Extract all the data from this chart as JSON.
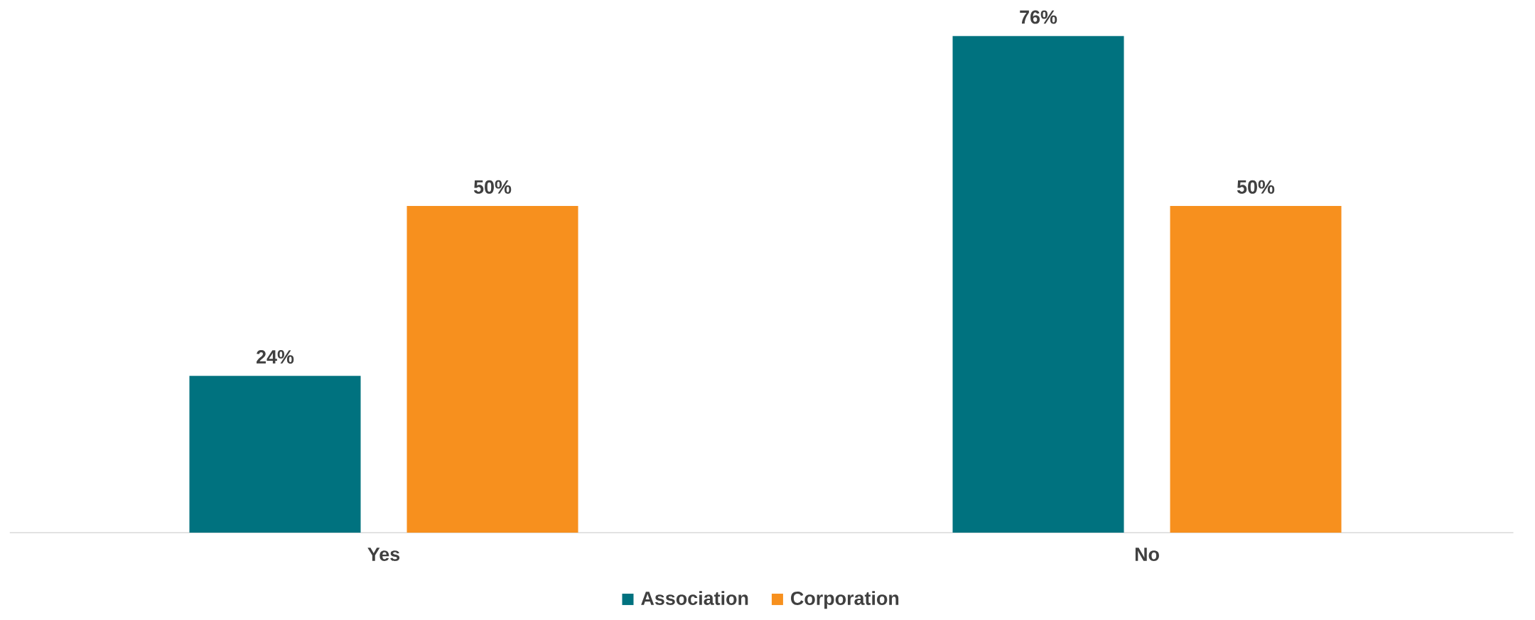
{
  "chart_data": {
    "type": "bar",
    "categories": [
      "Yes",
      "No"
    ],
    "legend": "bottom",
    "series": [
      {
        "name": "Association",
        "color": "#00727f",
        "values": [
          24,
          76
        ],
        "value_labels": [
          "24%",
          "76%"
        ]
      },
      {
        "name": "Corporation",
        "color": "#f7901e",
        "values": [
          50,
          50
        ],
        "value_labels": [
          "50%",
          "50%"
        ]
      }
    ]
  }
}
